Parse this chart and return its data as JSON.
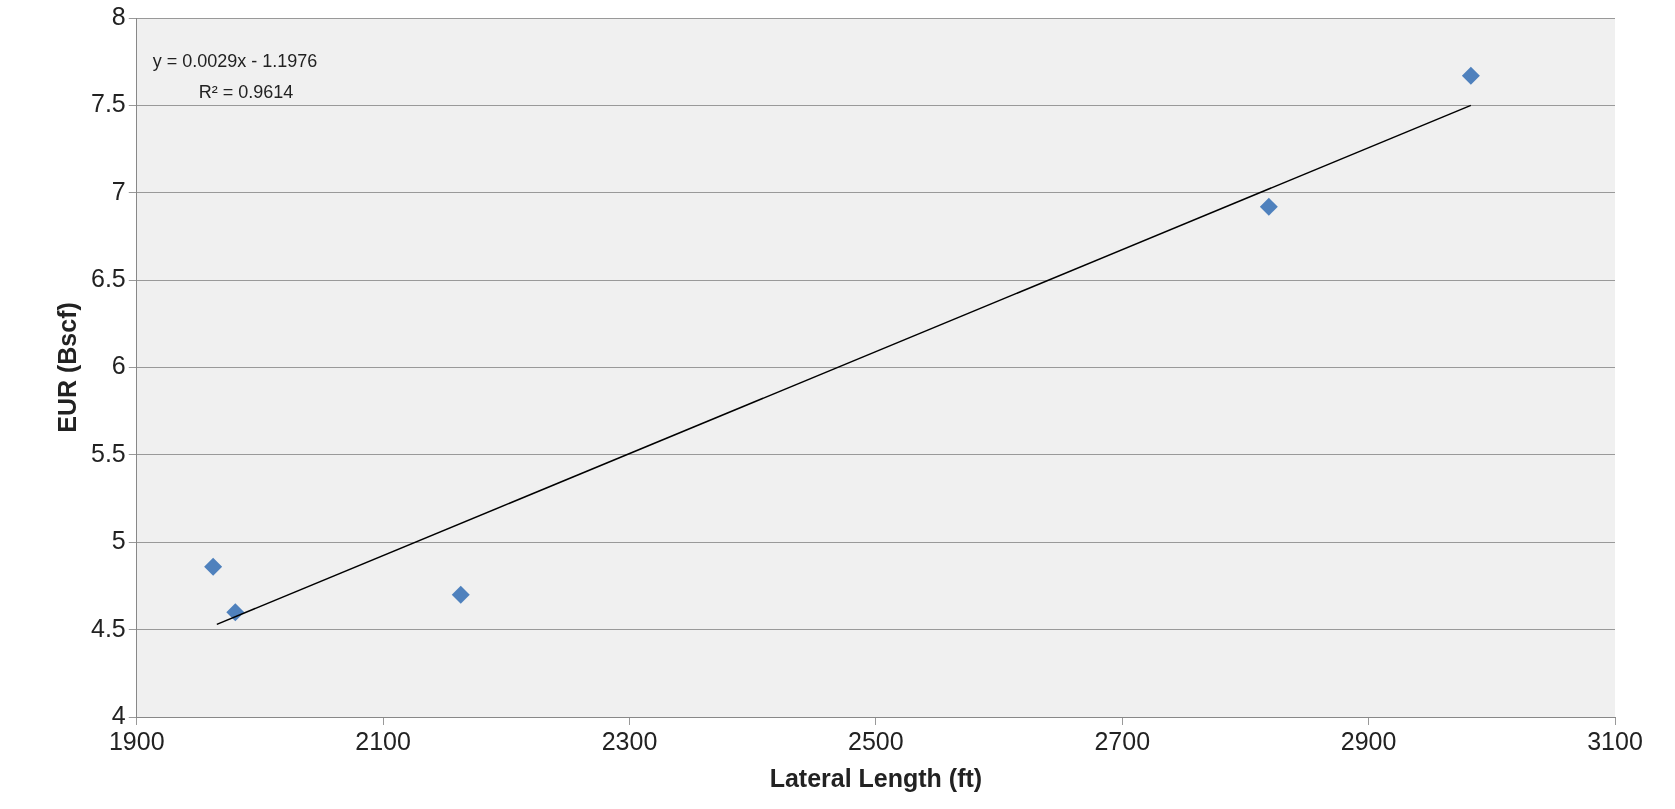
{
  "chart_data": {
    "type": "scatter",
    "xlabel": "Lateral Length (ft)",
    "ylabel": "EUR (Bscf)",
    "xlim": [
      1900,
      3100
    ],
    "xticks": [
      1900,
      2100,
      2300,
      2500,
      2700,
      2900,
      3100
    ],
    "ylim": [
      4,
      8
    ],
    "yticks": [
      4,
      4.5,
      5,
      5.5,
      6,
      6.5,
      7,
      7.5,
      8
    ],
    "grid": "y",
    "legend": false,
    "marker": "diamond",
    "annotations": [
      "y = 0.0029x - 1.1976",
      "R² = 0.9614"
    ],
    "series": [
      {
        "type": "scatter",
        "color": "#4f81bd",
        "x": [
          1962,
          1980,
          2163,
          2819,
          2983
        ],
        "values": [
          4.86,
          4.6,
          4.7,
          6.92,
          7.67
        ]
      },
      {
        "type": "line",
        "color": "#000000",
        "x": [
          1965,
          2983
        ],
        "values": [
          4.53,
          7.5
        ],
        "marker": "none"
      }
    ]
  }
}
